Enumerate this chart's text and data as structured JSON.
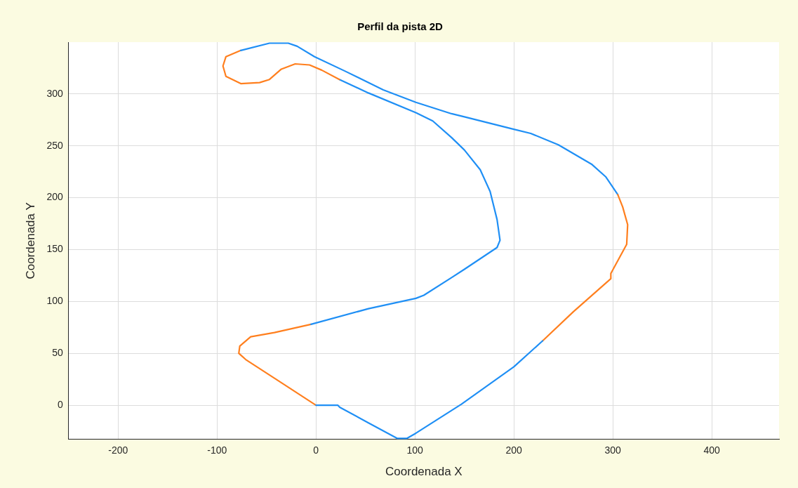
{
  "chart_data": {
    "type": "line",
    "title": "Perfil da pista 2D",
    "xlabel": "Coordenada X",
    "ylabel": "Coordenada Y",
    "xlim": [
      -250,
      468
    ],
    "xticks": [
      -200,
      -100,
      0,
      100,
      200,
      300,
      400
    ],
    "ylim": [
      -33,
      350
    ],
    "yticks": [
      0,
      50,
      100,
      150,
      200,
      250,
      300
    ],
    "grid": true,
    "legend": false,
    "marker": "none",
    "line_style": "solid",
    "series": [
      {
        "color": "#1f8ff5",
        "x": [
          0,
          22,
          24,
          53,
          82,
          92,
          101,
          147,
          200,
          229
        ],
        "values": [
          0,
          0,
          -2,
          -17,
          -32,
          -32,
          -27,
          1,
          37,
          62
        ]
      },
      {
        "color": "#ff7f1e",
        "x": [
          229,
          260,
          298,
          298,
          314,
          315,
          310,
          305
        ],
        "values": [
          62,
          90,
          122,
          127,
          155,
          174,
          191,
          203
        ]
      },
      {
        "color": "#1f8ff5",
        "x": [
          305,
          293,
          279,
          245,
          217,
          200,
          150,
          137,
          101,
          68,
          29.5,
          -1.5,
          -19,
          -28,
          -47,
          -76
        ],
        "values": [
          203,
          220,
          232,
          251,
          262,
          266,
          278,
          281,
          292,
          304,
          322,
          336,
          346,
          349,
          349,
          342
        ]
      },
      {
        "color": "#ff7f1e",
        "x": [
          -76,
          -91,
          -94,
          -91,
          -76,
          -57,
          -47,
          -35,
          -21,
          -6.5,
          5.8,
          23.7
        ],
        "values": [
          342,
          336,
          327,
          317,
          310,
          311,
          314,
          324,
          329,
          328,
          323,
          314
        ]
      },
      {
        "color": "#1f8ff5",
        "x": [
          23.7,
          53,
          101,
          118,
          137,
          150,
          166,
          176,
          183,
          186,
          183,
          150,
          137,
          109,
          101,
          53,
          -5
        ],
        "values": [
          314,
          301,
          282,
          274,
          258,
          246,
          227,
          206,
          179,
          159,
          152,
          131,
          123,
          106,
          103,
          93,
          78
        ]
      },
      {
        "color": "#ff7f1e",
        "x": [
          -5,
          -42,
          -66,
          -77,
          -78,
          -71,
          -42,
          0
        ],
        "values": [
          78,
          70,
          66,
          57,
          50,
          44,
          26,
          0
        ]
      }
    ]
  }
}
